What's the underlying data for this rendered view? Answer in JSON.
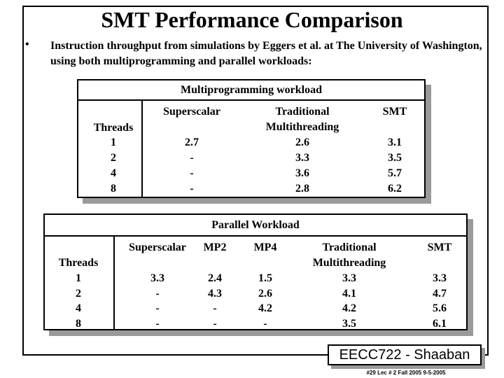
{
  "title": "SMT Performance Comparison",
  "bullet": "Instruction throughput from simulations by Eggers et al.  at The University of Washington, using both multiprogramming and parallel workloads:",
  "tables": [
    {
      "caption": "Multiprogramming  workload",
      "row_header": "Threads",
      "columns": [
        "Superscalar",
        "Traditional Multithreading",
        "SMT"
      ],
      "rows": [
        [
          "1",
          "2.7",
          "2.6",
          "3.1"
        ],
        [
          "2",
          "-",
          "3.3",
          "3.5"
        ],
        [
          "4",
          "-",
          "3.6",
          "5.7"
        ],
        [
          "8",
          "-",
          "2.8",
          "6.2"
        ]
      ]
    },
    {
      "caption": "Parallel  Workload",
      "row_header": "Threads",
      "columns": [
        "Superscalar",
        "MP2",
        "MP4",
        "Traditional Multithreading",
        "SMT"
      ],
      "rows": [
        [
          "1",
          "3.3",
          "2.4",
          "1.5",
          "3.3",
          "3.3"
        ],
        [
          "2",
          "-",
          "4.3",
          "2.6",
          "4.1",
          "4.7"
        ],
        [
          "4",
          "-",
          "-",
          "4.2",
          "4.2",
          "5.6"
        ],
        [
          "8",
          "-",
          "-",
          "-",
          "3.5",
          "6.1"
        ]
      ]
    }
  ],
  "footer": {
    "badge": "EECC722 - Shaaban",
    "note": "#29   Lec # 2   Fall 2005  9-5-2005"
  }
}
